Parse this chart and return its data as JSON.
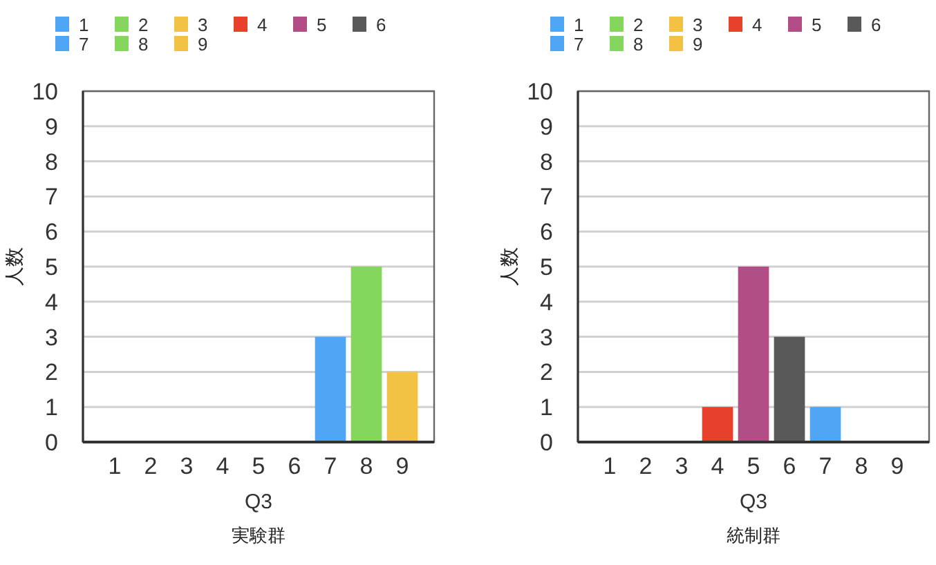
{
  "chart_data": [
    {
      "type": "bar",
      "stacked": true,
      "categories": [
        "1",
        "2",
        "3",
        "4",
        "5",
        "6",
        "7",
        "8",
        "9"
      ],
      "series": [
        {
          "name": "1",
          "color": "#4ea6f4",
          "values": [
            0,
            null,
            null,
            null,
            null,
            null,
            null,
            null,
            null
          ]
        },
        {
          "name": "2",
          "color": "#84d65c",
          "values": [
            null,
            0,
            null,
            null,
            null,
            null,
            null,
            null,
            null
          ]
        },
        {
          "name": "3",
          "color": "#f3c244",
          "values": [
            null,
            null,
            0,
            null,
            null,
            null,
            null,
            null,
            null
          ]
        },
        {
          "name": "4",
          "color": "#e8402a",
          "values": [
            null,
            null,
            null,
            0,
            null,
            null,
            null,
            null,
            null
          ]
        },
        {
          "name": "5",
          "color": "#b24d86",
          "values": [
            null,
            null,
            null,
            null,
            0,
            null,
            null,
            null,
            null
          ]
        },
        {
          "name": "6",
          "color": "#595959",
          "values": [
            null,
            null,
            null,
            null,
            null,
            0,
            null,
            null,
            null
          ]
        },
        {
          "name": "7",
          "color": "#4ea6f4",
          "values": [
            null,
            null,
            null,
            null,
            null,
            null,
            3,
            null,
            null
          ]
        },
        {
          "name": "8",
          "color": "#84d65c",
          "values": [
            null,
            null,
            null,
            null,
            null,
            null,
            null,
            5,
            null
          ]
        },
        {
          "name": "9",
          "color": "#f3c244",
          "values": [
            null,
            null,
            null,
            null,
            null,
            null,
            null,
            null,
            2
          ]
        }
      ],
      "xlabel": "Q3",
      "ylabel": "人数",
      "annotations": [
        "実験群"
      ],
      "ylim": [
        0,
        10
      ],
      "yticks": [
        0,
        1,
        2,
        3,
        4,
        5,
        6,
        7,
        8,
        9,
        10
      ],
      "grid": "y",
      "legend": "top"
    },
    {
      "type": "bar",
      "stacked": true,
      "categories": [
        "1",
        "2",
        "3",
        "4",
        "5",
        "6",
        "7",
        "8",
        "9"
      ],
      "series": [
        {
          "name": "1",
          "color": "#4ea6f4",
          "values": [
            0,
            null,
            null,
            null,
            null,
            null,
            null,
            null,
            null
          ]
        },
        {
          "name": "2",
          "color": "#84d65c",
          "values": [
            null,
            0,
            null,
            null,
            null,
            null,
            null,
            null,
            null
          ]
        },
        {
          "name": "3",
          "color": "#f3c244",
          "values": [
            null,
            null,
            0,
            null,
            null,
            null,
            null,
            null,
            null
          ]
        },
        {
          "name": "4",
          "color": "#e8402a",
          "values": [
            null,
            null,
            null,
            1,
            null,
            null,
            null,
            null,
            null
          ]
        },
        {
          "name": "5",
          "color": "#b24d86",
          "values": [
            null,
            null,
            null,
            null,
            5,
            null,
            null,
            null,
            null
          ]
        },
        {
          "name": "6",
          "color": "#595959",
          "values": [
            null,
            null,
            null,
            null,
            null,
            3,
            null,
            null,
            null
          ]
        },
        {
          "name": "7",
          "color": "#4ea6f4",
          "values": [
            null,
            null,
            null,
            null,
            null,
            null,
            1,
            null,
            null
          ]
        },
        {
          "name": "8",
          "color": "#84d65c",
          "values": [
            null,
            null,
            null,
            null,
            null,
            null,
            null,
            0,
            null
          ]
        },
        {
          "name": "9",
          "color": "#f3c244",
          "values": [
            null,
            null,
            null,
            null,
            null,
            null,
            null,
            null,
            0
          ]
        }
      ],
      "xlabel": "Q3",
      "ylabel": "人数",
      "annotations": [
        "統制群"
      ],
      "ylim": [
        0,
        10
      ],
      "yticks": [
        0,
        1,
        2,
        3,
        4,
        5,
        6,
        7,
        8,
        9,
        10
      ],
      "grid": "y",
      "legend": "top"
    }
  ]
}
